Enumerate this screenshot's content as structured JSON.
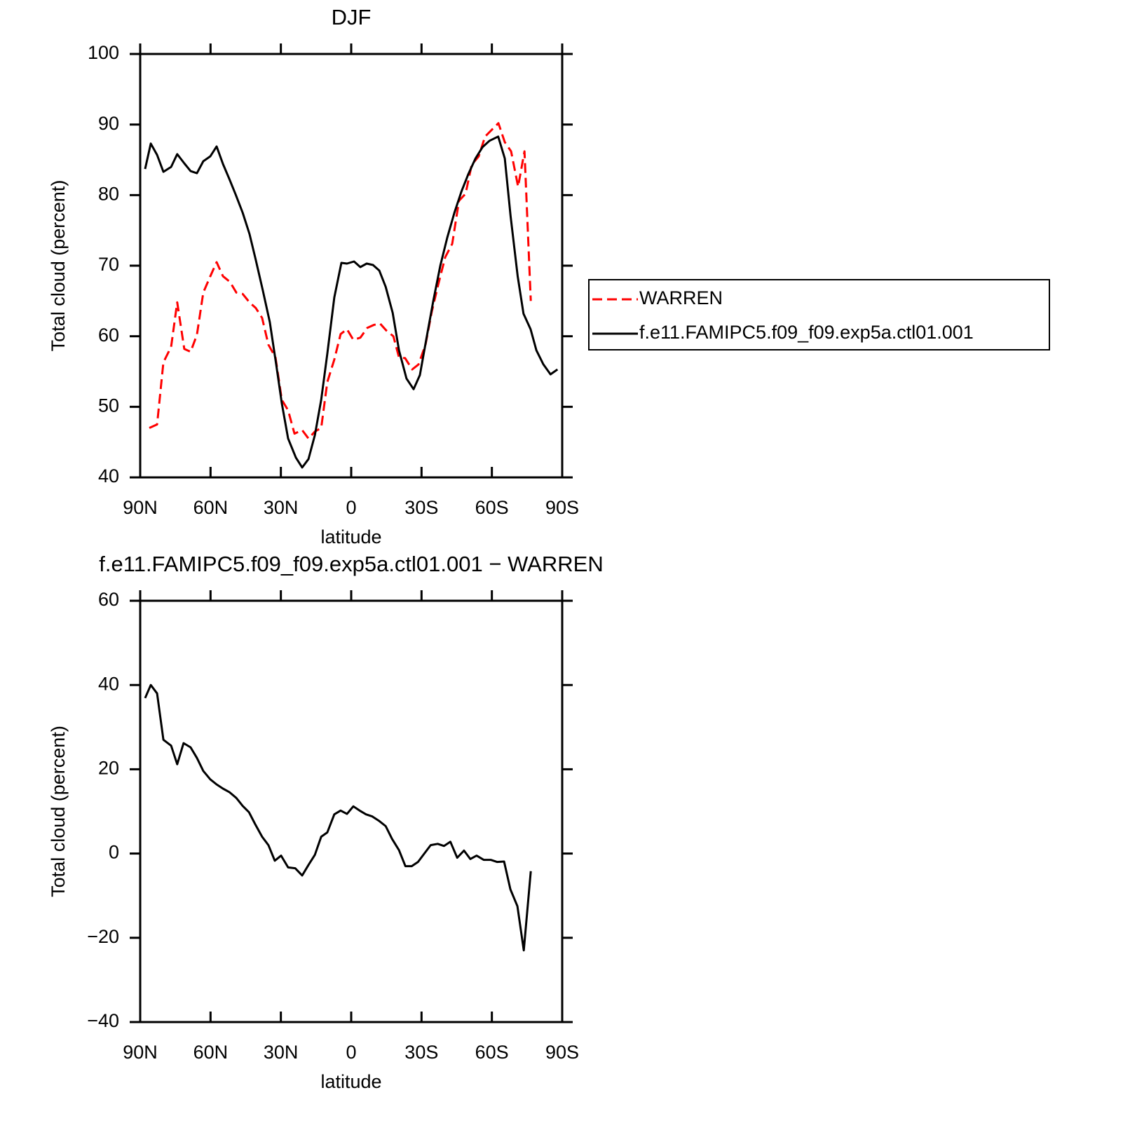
{
  "chart_data": [
    {
      "type": "line",
      "title": "DJF",
      "x_label": "latitude",
      "y_label": "Total cloud (percent)",
      "xlim": [
        90,
        -90
      ],
      "xticks": [
        {
          "value": 90,
          "label": "90N"
        },
        {
          "value": 60,
          "label": "60N"
        },
        {
          "value": 30,
          "label": "30N"
        },
        0,
        {
          "value": -30,
          "label": "30S"
        },
        {
          "value": -60,
          "label": "60S"
        },
        {
          "value": -90,
          "label": "90S"
        }
      ],
      "ylim": [
        40,
        100
      ],
      "yticks": [
        40,
        50,
        60,
        70,
        80,
        90,
        100
      ],
      "legend": "right",
      "series": [
        {
          "name": "WARREN",
          "color": "#ff0000",
          "style": "dashed",
          "x": [
            86.1,
            82.8,
            80.1,
            76.8,
            74.2,
            71.2,
            68.5,
            65.8,
            63.1,
            60.1,
            57.4,
            54.7,
            51.7,
            49,
            46.3,
            43.4,
            40.7,
            38,
            35.3,
            32.3,
            29.6,
            26.9,
            24.2,
            20.9,
            18.2,
            15.5,
            12.8,
            10.2,
            7.2,
            4.5,
            1.8,
            -0.9,
            -3.9,
            -6.9,
            -9.6,
            -12.3,
            -15,
            -18,
            -20.4,
            -23,
            -26,
            -28.7,
            -31.7,
            -34.4,
            -37.1,
            -40.1,
            -43.1,
            -46,
            -48.8,
            -51.4,
            -54.4,
            -57.1,
            -59.8,
            -62.8,
            -65.5,
            -68.2,
            -71.2,
            -73.9,
            -76.6
          ],
          "values": [
            47,
            47.5,
            56.3,
            58.5,
            64.8,
            58.2,
            57.8,
            60.2,
            66.2,
            68.5,
            70.5,
            68.5,
            67.7,
            66.2,
            66,
            64.8,
            64,
            62.6,
            58.8,
            57,
            51,
            49.5,
            46.2,
            46.7,
            45.5,
            46.5,
            47,
            53.5,
            56.7,
            60.3,
            61,
            59.5,
            59.8,
            61.2,
            61.6,
            61.8,
            60.8,
            60,
            57,
            56.9,
            55.3,
            56,
            58.8,
            63.5,
            67.3,
            71.2,
            73.1,
            79.2,
            80.2,
            84.3,
            85.5,
            88.3,
            89.2,
            90.2,
            87.5,
            86.2,
            81.2,
            86.2,
            65
          ]
        },
        {
          "name": "f.e11.FAMIPC5.f09_f09.exp5a.ctl01.001",
          "color": "#000000",
          "style": "solid",
          "x": [
            87.9,
            85.5,
            82.8,
            80.1,
            76.8,
            74.2,
            71.2,
            68.5,
            65.8,
            63.1,
            60.1,
            57.4,
            54.7,
            52,
            49.3,
            46.3,
            43.4,
            40.7,
            37.7,
            34.7,
            32,
            29.6,
            26.9,
            23.6,
            20.9,
            18.2,
            15.5,
            12.8,
            10.2,
            7.2,
            4.2,
            1.8,
            -1.2,
            -3.9,
            -6.6,
            -9.3,
            -12,
            -14.7,
            -17.7,
            -20.4,
            -23.6,
            -26.6,
            -29.3,
            -32,
            -35,
            -38,
            -41,
            -44,
            -47,
            -50,
            -53,
            -56,
            -59,
            -62.7,
            -65.5,
            -68,
            -71,
            -73.5,
            -76.5,
            -79,
            -82,
            -85,
            -88
          ],
          "values": [
            83.7,
            87.3,
            85.7,
            83.3,
            84,
            85.8,
            84.5,
            83.4,
            83.1,
            84.8,
            85.5,
            86.9,
            84.4,
            82.3,
            80.1,
            77.5,
            74.5,
            70.8,
            66.5,
            62,
            56,
            50.5,
            45.5,
            42.8,
            41.4,
            42.6,
            46,
            51,
            57.5,
            65.5,
            70.4,
            70.3,
            70.6,
            69.8,
            70.3,
            70.1,
            69.3,
            67,
            63.3,
            58,
            54,
            52.5,
            54.5,
            59.5,
            65,
            70,
            74,
            77.5,
            80.5,
            83,
            85.2,
            86.8,
            87.7,
            88.3,
            85.2,
            77,
            68.5,
            63.2,
            61,
            58,
            56,
            54.6,
            55.3
          ]
        }
      ]
    },
    {
      "type": "line",
      "title": "f.e11.FAMIPC5.f09_f09.exp5a.ctl01.001 − WARREN",
      "x_label": "latitude",
      "y_label": "Total cloud (percent)",
      "xlim": [
        90,
        -90
      ],
      "xticks": [
        {
          "value": 90,
          "label": "90N"
        },
        {
          "value": 60,
          "label": "60N"
        },
        {
          "value": 30,
          "label": "30N"
        },
        0,
        {
          "value": -30,
          "label": "30S"
        },
        {
          "value": -60,
          "label": "60S"
        },
        {
          "value": -90,
          "label": "90S"
        }
      ],
      "ylim": [
        -40,
        60
      ],
      "yticks": [
        {
          "value": -40,
          "label": "−40"
        },
        {
          "value": -20,
          "label": "−20"
        },
        0,
        20,
        40,
        60
      ],
      "series": [
        {
          "color": "#000000",
          "style": "solid",
          "x": [
            87.9,
            85.5,
            82.8,
            80.1,
            76.8,
            74.2,
            71.5,
            68.5,
            65.8,
            63.1,
            60.1,
            57.4,
            54.7,
            52,
            49,
            46.3,
            43.6,
            41,
            38,
            35.3,
            32.6,
            29.9,
            26.9,
            23.9,
            20.9,
            18.2,
            15.5,
            12.8,
            10.2,
            7.2,
            4.5,
            1.8,
            -0.9,
            -3.6,
            -6.3,
            -9,
            -12,
            -14.7,
            -17.4,
            -20.4,
            -23.1,
            -25.8,
            -28.5,
            -31.2,
            -33.9,
            -36.9,
            -39.6,
            -42.3,
            -45.2,
            -48.1,
            -50.8,
            -53.5,
            -56.5,
            -59.5,
            -62.2,
            -65.2,
            -67.9,
            -70.9,
            -73.6,
            -76.6
          ],
          "values": [
            36.9,
            40,
            38,
            27,
            25.6,
            21.2,
            26.2,
            25.2,
            22.7,
            19.6,
            17.6,
            16.4,
            15.4,
            14.6,
            13.2,
            11.3,
            9.8,
            7,
            4,
            2,
            -1.7,
            -0.5,
            -3.3,
            -3.5,
            -5.2,
            -2.7,
            -0.3,
            4,
            5,
            9.3,
            10.2,
            9.4,
            11.2,
            10.2,
            9.3,
            8.8,
            7.7,
            6.5,
            3.5,
            0.8,
            -3,
            -3,
            -2,
            0,
            2,
            2.3,
            1.8,
            2.8,
            -1,
            0.7,
            -1.3,
            -0.5,
            -1.5,
            -1.5,
            -2,
            -1.9,
            -8.5,
            -12.5,
            -23,
            -4.2
          ]
        }
      ]
    }
  ]
}
